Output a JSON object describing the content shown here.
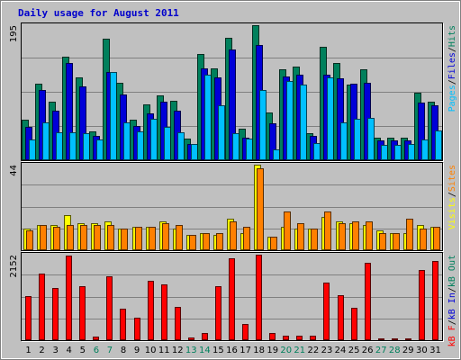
{
  "chart_data": {
    "type": "bar",
    "title": "Daily usage for August 2011",
    "days": [
      "1",
      "2",
      "3",
      "4",
      "5",
      "6",
      "7",
      "8",
      "9",
      "10",
      "11",
      "12",
      "13",
      "14",
      "15",
      "16",
      "17",
      "18",
      "19",
      "20",
      "21",
      "22",
      "23",
      "24",
      "25",
      "26",
      "27",
      "28",
      "29",
      "30",
      "31"
    ],
    "weekend_days": [
      "6",
      "7",
      "13",
      "14",
      "20",
      "21",
      "27",
      "28"
    ],
    "colors": {
      "hits": "#00805c",
      "files": "#0000d8",
      "pages": "#00c0ff",
      "visits": "#ffff00",
      "sites": "#ff8000",
      "kbytes": "#ff0000",
      "weekday_text": "#000000",
      "weekend_text": "#00805c",
      "background": "#c0c0c0",
      "gridline": "#808080"
    },
    "panels": [
      {
        "name": "hits-files-pages",
        "max_label": "195",
        "ymax": 195,
        "legend": [
          {
            "text": "Pages",
            "color": "#00c0ff"
          },
          {
            "text": "/",
            "color": "#000000"
          },
          {
            "text": "Files",
            "color": "#0000d8"
          },
          {
            "text": "/",
            "color": "#000000"
          },
          {
            "text": "Hits",
            "color": "#00805c"
          }
        ],
        "series": [
          {
            "name": "Hits",
            "color": "#00805c",
            "values": [
              59,
              111,
              84,
              150,
              119,
              41,
              175,
              112,
              58,
              80,
              93,
              86,
              31,
              154,
              133,
              177,
              45,
              195,
              69,
              131,
              135,
              39,
              164,
              140,
              109,
              131,
              33,
              33,
              32,
              98,
              84
            ]
          },
          {
            "name": "Files",
            "color": "#0000d8",
            "values": [
              48,
              102,
              72,
              140,
              106,
              35,
              128,
              95,
              50,
              67,
              84,
              71,
              24,
              132,
              119,
              160,
              32,
              167,
              53,
              121,
              123,
              35,
              123,
              118,
              111,
              112,
              29,
              29,
              29,
              83,
              79
            ]
          },
          {
            "name": "Pages",
            "color": "#00c0ff",
            "values": [
              30,
              55,
              40,
              40,
              39,
              30,
              128,
              55,
              42,
              60,
              48,
              40,
              23,
              123,
              79,
              39,
              31,
              101,
              15,
              114,
              109,
              25,
              120,
              54,
              60,
              61,
              22,
              22,
              23,
              30,
              43
            ]
          }
        ]
      },
      {
        "name": "visits-sites",
        "max_label": "44",
        "ymax": 44,
        "legend": [
          {
            "text": "Visits",
            "color": "#ffff00"
          },
          {
            "text": "/",
            "color": "#000000"
          },
          {
            "text": "Sites",
            "color": "#ff8000"
          }
        ],
        "series": [
          {
            "name": "Visits",
            "color": "#ffff00",
            "values": [
              11,
              13,
              13,
              18,
              14,
              14,
              15,
              11,
              12,
              12,
              15,
              11,
              8,
              9,
              8,
              16,
              9,
              44,
              7,
              12,
              11,
              11,
              17,
              15,
              14,
              13,
              10,
              9,
              9,
              13,
              12
            ]
          },
          {
            "name": "Sites",
            "color": "#ff8000",
            "values": [
              10,
              13,
              12,
              13,
              13,
              13,
              13,
              11,
              12,
              12,
              14,
              13,
              8,
              9,
              9,
              15,
              12,
              42,
              7,
              20,
              14,
              11,
              20,
              14,
              15,
              15,
              9,
              9,
              16,
              11,
              12
            ]
          }
        ]
      },
      {
        "name": "kbytes",
        "max_label": "2152",
        "ymax": 2152,
        "legend": [
          {
            "text": "kB F",
            "color": "#ff0000"
          },
          {
            "text": "/",
            "color": "#000000"
          },
          {
            "text": "kB In",
            "color": "#0000d8"
          },
          {
            "text": "/",
            "color": "#000000"
          },
          {
            "text": "kB Out",
            "color": "#00805c"
          }
        ],
        "series": [
          {
            "name": "kB F",
            "color": "#ff0000",
            "values": [
              1110,
              1665,
              1315,
              2126,
              1358,
              89,
              1600,
              803,
              568,
              1496,
              1412,
              841,
              66,
              174,
              1360,
              2052,
              405,
              2152,
              191,
              112,
              104,
              104,
              1458,
              1139,
              820,
              1937,
              51,
              49,
              56,
              1772,
              1985
            ]
          }
        ]
      }
    ]
  }
}
